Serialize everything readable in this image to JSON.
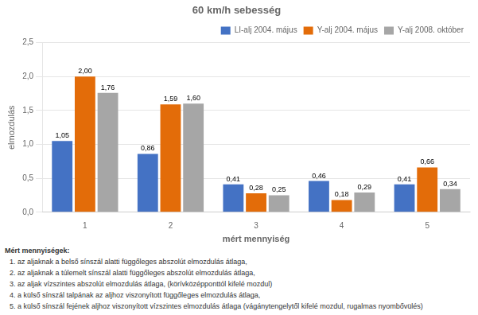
{
  "chart_data": {
    "type": "bar",
    "title": "60 km/h sebesség",
    "xlabel": "mért mennyiség",
    "ylabel": "elmozdulás",
    "categories": [
      "1",
      "2",
      "3",
      "4",
      "5"
    ],
    "series": [
      {
        "name": "LI-alj 2004. május",
        "color": "#4472C4",
        "values": [
          1.05,
          0.86,
          0.41,
          0.46,
          0.41
        ],
        "value_labels": [
          "1,05",
          "0,86",
          "0,41",
          "0,46",
          "0,41"
        ]
      },
      {
        "name": "Y-alj 2004. május",
        "color": "#E36C09",
        "values": [
          2.0,
          1.59,
          0.28,
          0.18,
          0.66
        ],
        "value_labels": [
          "2,00",
          "1,59",
          "0,28",
          "0,18",
          "0,66"
        ]
      },
      {
        "name": "Y-alj 2008. október",
        "color": "#A6A6A6",
        "values": [
          1.76,
          1.6,
          0.25,
          0.29,
          0.34
        ],
        "value_labels": [
          "1,76",
          "1,60",
          "0,25",
          "0,29",
          "0,34"
        ]
      }
    ],
    "ylim": [
      0,
      2.5
    ],
    "yticks": [
      {
        "value": 0.0,
        "label": "0,0"
      },
      {
        "value": 0.5,
        "label": "0,5"
      },
      {
        "value": 1.0,
        "label": "1,0"
      },
      {
        "value": 1.5,
        "label": "1,5"
      },
      {
        "value": 2.0,
        "label": "2,0"
      },
      {
        "value": 2.5,
        "label": "2,5"
      }
    ],
    "grid": true,
    "legend": "upper right",
    "data_labels": true,
    "annotations": [
      "Mért mennyiségek:",
      "1. az aljaknak a belső sínszál alatti függőleges abszolút elmozdulás átlaga,",
      "2. az aljaknak a túlemelt sínszál alatti függőleges abszolút elmozdulás átlaga,",
      "3. az aljak vízszintes abszolút elmozdulás átlaga, (körívközépponttól kifelé mozdul)",
      "4. a külső sínszál talpának az aljhoz viszonyított függőleges elmozdulás átlaga,",
      "5. a külső sínszál fejének aljhoz viszonyított vízszintes elmozdulás átlaga (vágánytengelytől kifelé mozdul, rugalmas nyombővülés)"
    ]
  }
}
